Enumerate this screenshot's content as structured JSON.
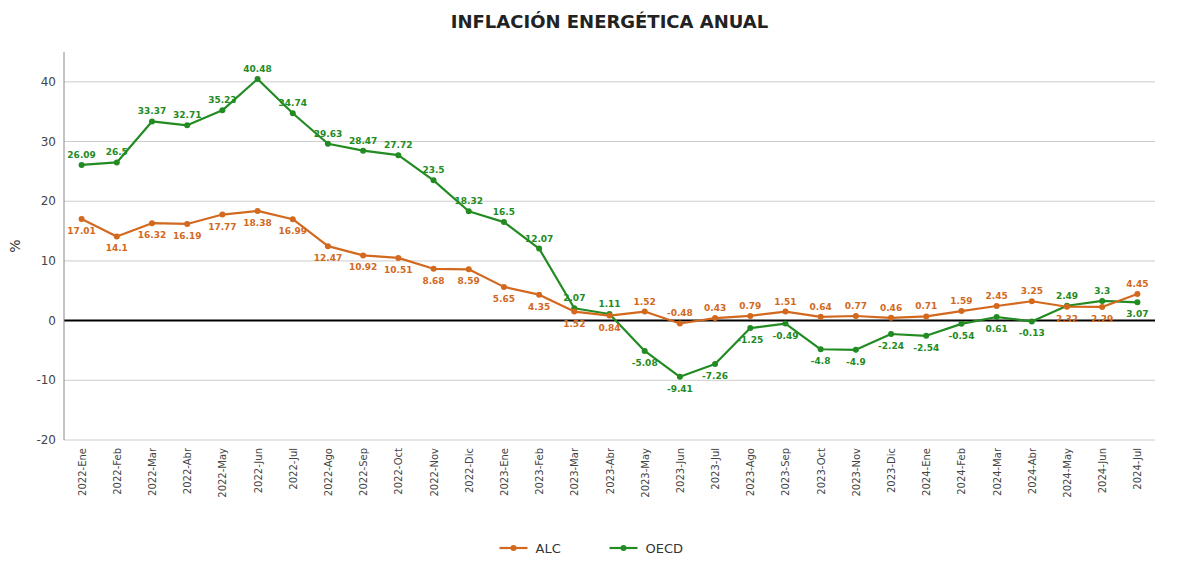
{
  "chart_data": {
    "type": "line",
    "title": "INFLACIÓN ENERGÉTICA ANUAL",
    "ylabel": "%",
    "categories": [
      "2022-Ene",
      "2022-Feb",
      "2022-Mar",
      "2022-Abr",
      "2022-May",
      "2022-Jun",
      "2022-Jul",
      "2022-Ago",
      "2022-Sep",
      "2022-Oct",
      "2022-Nov",
      "2022-Dic",
      "2023-Ene",
      "2023-Feb",
      "2023-Mar",
      "2023-Abr",
      "2023-May",
      "2023-Jun",
      "2023-Jul",
      "2023-Ago",
      "2023-Sep",
      "2023-Oct",
      "2023-Nov",
      "2023-Dic",
      "2024-Ene",
      "2024-Feb",
      "2024-Mar",
      "2024-Abr",
      "2024-May",
      "2024-Jun",
      "2024-Jul"
    ],
    "series": [
      {
        "name": "ALC",
        "color": "#D2691E",
        "values": [
          17.01,
          14.1,
          16.32,
          16.19,
          17.77,
          18.38,
          16.99,
          12.47,
          10.92,
          10.51,
          8.68,
          8.59,
          5.65,
          4.35,
          1.52,
          0.84,
          1.52,
          -0.48,
          0.43,
          0.79,
          1.51,
          0.64,
          0.77,
          0.46,
          0.71,
          1.59,
          2.45,
          3.25,
          2.32,
          2.29,
          4.45
        ]
      },
      {
        "name": "OECD",
        "color": "#228B22",
        "values": [
          26.09,
          26.5,
          33.37,
          32.71,
          35.23,
          40.48,
          34.74,
          29.63,
          28.47,
          27.72,
          23.5,
          18.32,
          16.5,
          12.07,
          2.07,
          1.11,
          -5.08,
          -9.41,
          -7.26,
          -1.25,
          -0.49,
          -4.8,
          -4.9,
          -2.24,
          -2.54,
          -0.54,
          0.61,
          -0.13,
          2.49,
          3.3,
          3.07
        ]
      }
    ],
    "ylim": [
      -20,
      45
    ],
    "yticks": [
      -20,
      -10,
      0,
      10,
      20,
      30,
      40
    ],
    "grid": true,
    "data_labels": true,
    "legend": "bottom",
    "marker": "circle"
  }
}
